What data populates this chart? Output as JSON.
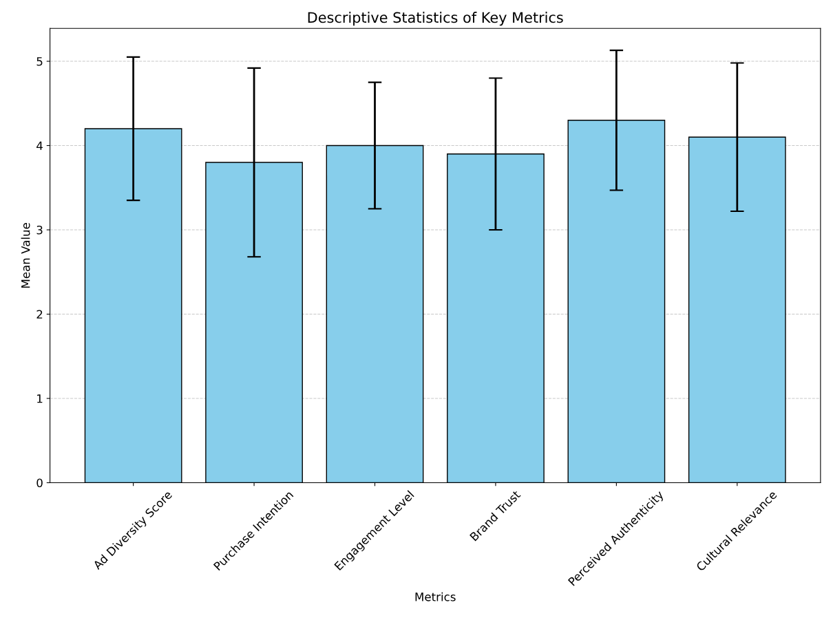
{
  "chart_data": {
    "type": "bar",
    "title": "Descriptive Statistics of Key Metrics",
    "xlabel": "Metrics",
    "ylabel": "Mean Value",
    "categories": [
      "Ad Diversity Score",
      "Purchase Intention",
      "Engagement Level",
      "Brand Trust",
      "Perceived Authenticity",
      "Cultural Relevance"
    ],
    "values": [
      4.2,
      3.8,
      4.0,
      3.9,
      4.3,
      4.1
    ],
    "errors": [
      0.85,
      1.12,
      0.75,
      0.9,
      0.83,
      0.88
    ],
    "color": "#87ceeb",
    "ylim": [
      0,
      5.39
    ],
    "yticks": [
      0,
      1,
      2,
      3,
      4,
      5
    ],
    "grid": "y"
  }
}
